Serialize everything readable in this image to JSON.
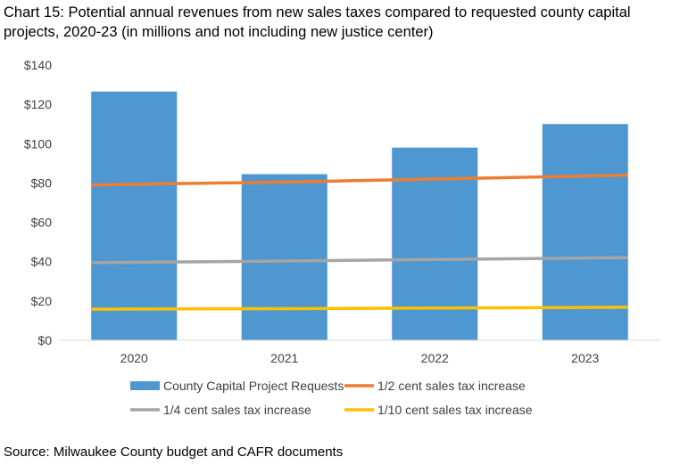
{
  "title": "Chart 15: Potential annual revenues from new sales taxes compared to requested county capital projects, 2020-23 (in millions and not including new justice center)",
  "source": "Source: Milwaukee County budget and CAFR documents",
  "chart_data": {
    "type": "bar",
    "categories": [
      "2020",
      "2021",
      "2022",
      "2023"
    ],
    "series": [
      {
        "name": "County Capital Project Requests",
        "type": "bar",
        "color": "#4f97d0",
        "values": [
          126.5,
          84.5,
          98,
          110
        ]
      },
      {
        "name": "1/2 cent sales tax increase",
        "type": "line",
        "color": "#ed7d31",
        "values": [
          79,
          80.5,
          82,
          84
        ]
      },
      {
        "name": "1/4 cent sales tax increase",
        "type": "line",
        "color": "#a5a5a5",
        "values": [
          39.5,
          40.3,
          41.1,
          42
        ]
      },
      {
        "name": "1/10 cent sales tax increase",
        "type": "line",
        "color": "#ffc000",
        "values": [
          15.8,
          16.1,
          16.4,
          16.8
        ]
      }
    ],
    "yticks": [
      "$0",
      "$20",
      "$40",
      "$60",
      "$80",
      "$100",
      "$120",
      "$140"
    ],
    "ylim": [
      0,
      140
    ],
    "grid": false,
    "legend_position": "bottom"
  }
}
